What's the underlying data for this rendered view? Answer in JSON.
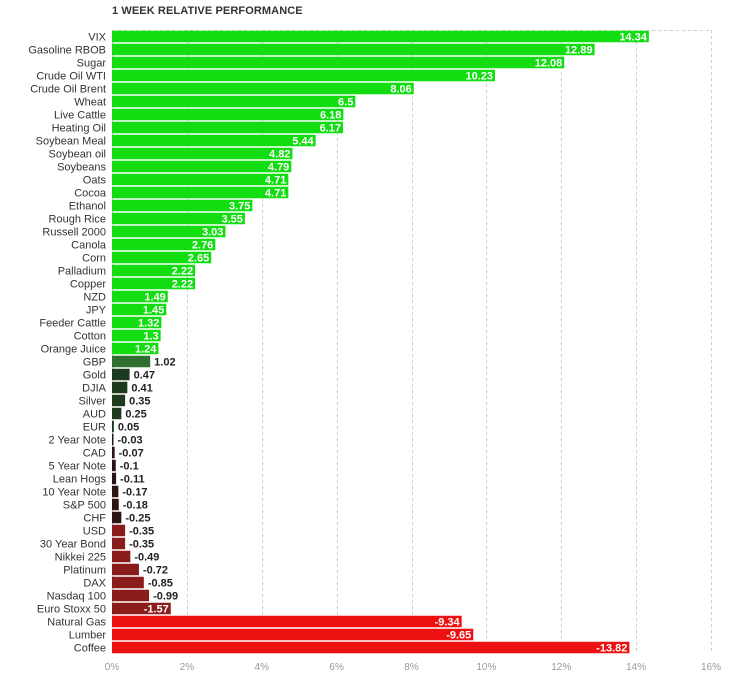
{
  "chart_data": {
    "type": "bar",
    "orientation": "horizontal",
    "title": "1 WEEK RELATIVE PERFORMANCE",
    "categories": [
      "VIX",
      "Gasoline RBOB",
      "Sugar",
      "Crude Oil WTI",
      "Crude Oil Brent",
      "Wheat",
      "Live Cattle",
      "Heating Oil",
      "Soybean Meal",
      "Soybean oil",
      "Soybeans",
      "Oats",
      "Cocoa",
      "Ethanol",
      "Rough Rice",
      "Russell 2000",
      "Canola",
      "Corn",
      "Palladium",
      "Copper",
      "NZD",
      "JPY",
      "Feeder Cattle",
      "Cotton",
      "Orange Juice",
      "GBP",
      "Gold",
      "DJIA",
      "Silver",
      "AUD",
      "EUR",
      "2 Year Note",
      "CAD",
      "5 Year Note",
      "Lean Hogs",
      "10 Year Note",
      "S&P 500",
      "CHF",
      "USD",
      "30 Year Bond",
      "Nikkei 225",
      "Platinum",
      "DAX",
      "Nasdaq 100",
      "Euro Stoxx 50",
      "Natural Gas",
      "Lumber",
      "Coffee"
    ],
    "values": [
      14.34,
      12.89,
      12.08,
      10.23,
      8.06,
      6.5,
      6.18,
      6.17,
      5.44,
      4.82,
      4.79,
      4.71,
      4.71,
      3.75,
      3.55,
      3.03,
      2.76,
      2.65,
      2.22,
      2.22,
      1.49,
      1.45,
      1.32,
      1.3,
      1.24,
      1.02,
      0.47,
      0.41,
      0.35,
      0.25,
      0.05,
      -0.03,
      -0.07,
      -0.1,
      -0.11,
      -0.17,
      -0.18,
      -0.25,
      -0.35,
      -0.35,
      -0.49,
      -0.72,
      -0.85,
      -0.99,
      -1.57,
      -9.34,
      -9.65,
      -13.82
    ],
    "value_labels": [
      "14.34",
      "12.89",
      "12.08",
      "10.23",
      "8.06",
      "6.5",
      "6.18",
      "6.17",
      "5.44",
      "4.82",
      "4.79",
      "4.71",
      "4.71",
      "3.75",
      "3.55",
      "3.03",
      "2.76",
      "2.65",
      "2.22",
      "2.22",
      "1.49",
      "1.45",
      "1.32",
      "1.3",
      "1.24",
      "1.02",
      "0.47",
      "0.41",
      "0.35",
      "0.25",
      "0.05",
      "-0.03",
      "-0.07",
      "-0.1",
      "-0.11",
      "-0.17",
      "-0.18",
      "-0.25",
      "-0.35",
      "-0.35",
      "-0.49",
      "-0.72",
      "-0.85",
      "-0.99",
      "-1.57",
      "-9.34",
      "-9.65",
      "-13.82"
    ],
    "x_ticks": [
      "0%",
      "2%",
      "4%",
      "6%",
      "8%",
      "10%",
      "12%",
      "14%",
      "16%"
    ],
    "xlim": [
      0,
      16
    ],
    "grid": true,
    "magnitude_axis": true,
    "colors": {
      "strong_positive": "#11dd11",
      "weak_positive_dark": "#1e3a1e",
      "weak_positive_mid": "#2f6f2f",
      "weak_negative_dark": "#2a1414",
      "weak_negative_mid": "#8a1c1c",
      "strong_negative": "#ee1111"
    }
  }
}
